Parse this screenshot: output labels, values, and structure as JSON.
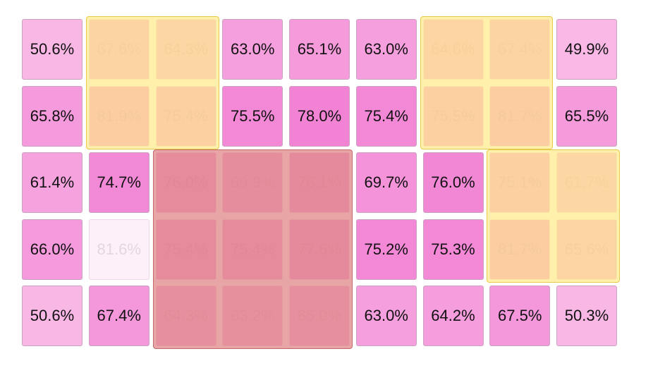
{
  "chart_data": {
    "type": "heatmap",
    "title": "",
    "rows": 5,
    "cols": 9,
    "values": [
      [
        "50.6%",
        "67.6%",
        "64.3%",
        "63.0%",
        "65.1%",
        "63.0%",
        "64.6%",
        "67.4%",
        "49.9%"
      ],
      [
        "65.8%",
        "81.9%",
        "75.4%",
        "75.5%",
        "78.0%",
        "75.4%",
        "75.5%",
        "81.7%",
        "65.5%"
      ],
      [
        "61.4%",
        "74.7%",
        "76.0%",
        "69.9%",
        "76.1%",
        "69.7%",
        "76.0%",
        "75.1%",
        "61.7%"
      ],
      [
        "66.0%",
        "81.6%",
        "75.4%",
        "75.4%",
        "77.6%",
        "75.2%",
        "75.3%",
        "81.7%",
        "65.6%"
      ],
      [
        "50.6%",
        "67.4%",
        "64.3%",
        "63.2%",
        "65.0%",
        "63.0%",
        "64.2%",
        "67.5%",
        "50.3%"
      ]
    ],
    "colors": {
      "low": "#f9b8e6",
      "high": "#f17fd3",
      "faded_cell": "#fdf0f9",
      "yellow_overlay": "#ffec8c",
      "red_overlay": "#e28c8c"
    },
    "highlight_regions": [
      {
        "color": "yellow",
        "row_start": 0,
        "row_end": 1,
        "col_start": 1,
        "col_end": 2
      },
      {
        "color": "yellow",
        "row_start": 0,
        "row_end": 1,
        "col_start": 6,
        "col_end": 7
      },
      {
        "color": "yellow",
        "row_start": 2,
        "row_end": 3,
        "col_start": 7,
        "col_end": 8
      },
      {
        "color": "red",
        "row_start": 2,
        "row_end": 4,
        "col_start": 2,
        "col_end": 4
      }
    ],
    "faded_cells": [
      [
        3,
        1
      ]
    ]
  }
}
